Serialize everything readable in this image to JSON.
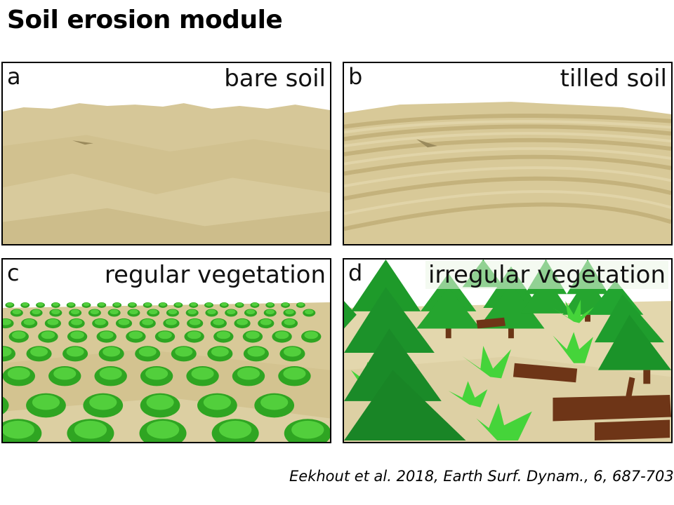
{
  "title": "Soil erosion module",
  "panels": [
    {
      "letter": "a",
      "label": "bare soil"
    },
    {
      "letter": "b",
      "label": "tilled soil"
    },
    {
      "letter": "c",
      "label": "regular vegetation"
    },
    {
      "letter": "d",
      "label": "irregular vegetation"
    }
  ],
  "citation": "Eekhout et al. 2018, Earth Surf. Dynam., 6, 687-703",
  "colors": {
    "soil": "#d9c99a",
    "soil_shade": "#c9b883",
    "plant": "#3cbf2c",
    "tree": "#1f9a2a",
    "log": "#6b3516"
  }
}
